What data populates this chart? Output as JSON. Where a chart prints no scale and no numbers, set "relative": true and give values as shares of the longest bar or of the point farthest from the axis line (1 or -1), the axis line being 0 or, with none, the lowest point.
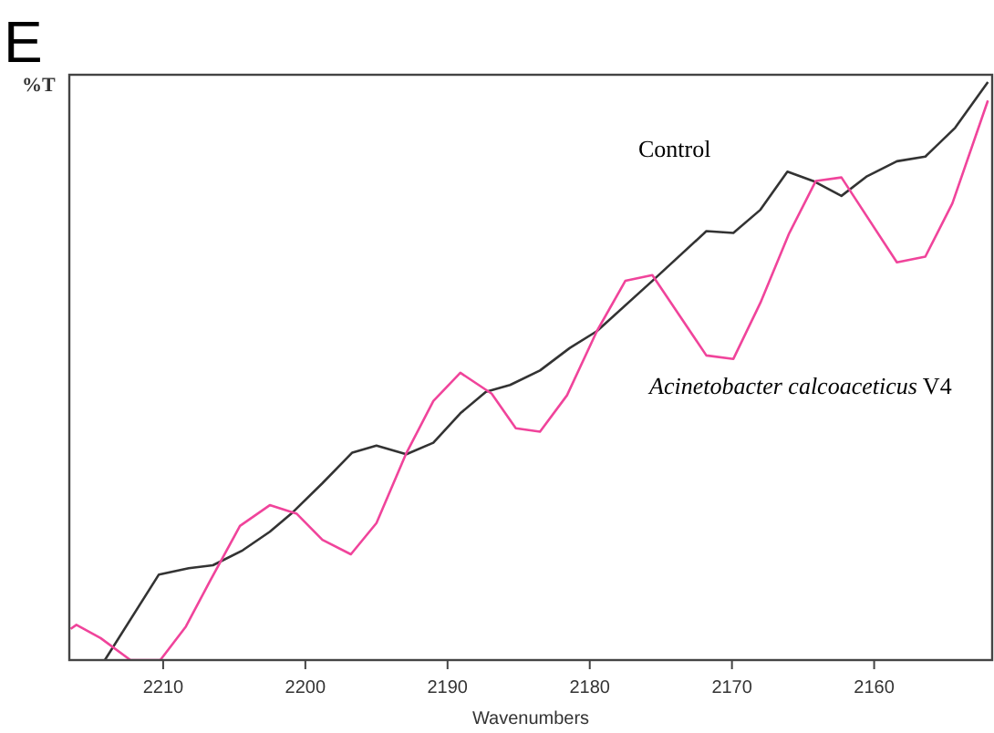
{
  "chart_data": {
    "type": "line",
    "title": "E",
    "xlabel": "Wavenumbers",
    "ylabel": "%T",
    "relative": true,
    "xlim": [
      2216.6,
      2151.7
    ],
    "xticks": [
      2210,
      2200,
      2190,
      2180,
      2170,
      2160
    ],
    "grid": false,
    "marker": "none",
    "line_style": "solid",
    "series": [
      {
        "name": "Control",
        "color": "#333333",
        "x": [
          2214.1,
          2210.3,
          2208.2,
          2206.5,
          2204.4,
          2202.5,
          2201.0,
          2198.8,
          2196.7,
          2195.0,
          2192.9,
          2191.0,
          2189.1,
          2187.3,
          2185.6,
          2183.5,
          2181.4,
          2179.5,
          2175.6,
          2171.8,
          2169.9,
          2168.0,
          2166.1,
          2164.3,
          2162.3,
          2160.5,
          2158.4,
          2156.4,
          2154.3,
          2152.0
        ],
        "values": [
          0.0,
          0.148,
          0.159,
          0.164,
          0.19,
          0.222,
          0.253,
          0.306,
          0.359,
          0.371,
          0.356,
          0.376,
          0.427,
          0.464,
          0.476,
          0.501,
          0.54,
          0.569,
          0.656,
          0.742,
          0.739,
          0.779,
          0.845,
          0.829,
          0.803,
          0.837,
          0.863,
          0.871,
          0.921,
          1.0
        ]
      },
      {
        "name": "Acinetobacter calcoaceticus V4",
        "color": "#f0449b",
        "x": [
          2216.5,
          2216.1,
          2214.4,
          2212.3,
          2210.2,
          2208.4,
          2206.7,
          2204.6,
          2202.5,
          2200.6,
          2198.8,
          2196.8,
          2195.0,
          2192.9,
          2191.0,
          2189.1,
          2186.9,
          2185.2,
          2183.5,
          2181.6,
          2179.5,
          2177.5,
          2175.6,
          2171.8,
          2169.9,
          2168.0,
          2166.0,
          2164.1,
          2162.3,
          2158.4,
          2156.4,
          2154.5,
          2152.0
        ],
        "values": [
          0.054,
          0.061,
          0.038,
          0.0,
          0.0,
          0.058,
          0.137,
          0.232,
          0.268,
          0.253,
          0.208,
          0.183,
          0.237,
          0.358,
          0.448,
          0.497,
          0.461,
          0.401,
          0.395,
          0.458,
          0.569,
          0.656,
          0.666,
          0.527,
          0.521,
          0.618,
          0.737,
          0.829,
          0.835,
          0.688,
          0.698,
          0.79,
          0.968
        ]
      }
    ]
  }
}
